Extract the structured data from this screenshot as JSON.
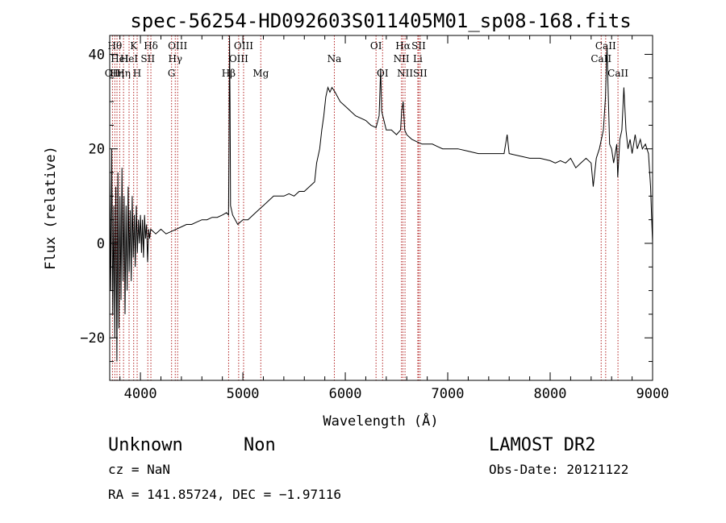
{
  "chart_data": {
    "type": "line",
    "title": "spec-56254-HD092603S011405M01_sp08-168.fits",
    "xlabel": "Wavelength (Å)",
    "ylabel": "Flux (relative)",
    "xlim": [
      3700,
      9000
    ],
    "ylim": [
      -29,
      44
    ],
    "x_ticks": [
      4000,
      5000,
      6000,
      7000,
      8000,
      9000
    ],
    "x_tick_labels": [
      "4000",
      "5000",
      "6000",
      "7000",
      "8000",
      "9000"
    ],
    "y_ticks": [
      -20,
      0,
      20,
      40
    ],
    "y_tick_labels": [
      "−20",
      "0",
      "20",
      "40"
    ],
    "x_minor_step": 200,
    "y_minor_step": 5,
    "grid": false,
    "series": [
      {
        "color": "#000000",
        "points": [
          [
            3700,
            16
          ],
          [
            3710,
            -10
          ],
          [
            3720,
            20
          ],
          [
            3730,
            -15
          ],
          [
            3740,
            8
          ],
          [
            3750,
            -20
          ],
          [
            3760,
            12
          ],
          [
            3770,
            -25
          ],
          [
            3780,
            15
          ],
          [
            3790,
            -18
          ],
          [
            3800,
            10
          ],
          [
            3810,
            -12
          ],
          [
            3820,
            16
          ],
          [
            3830,
            -8
          ],
          [
            3840,
            10
          ],
          [
            3850,
            -15
          ],
          [
            3860,
            8
          ],
          [
            3870,
            -10
          ],
          [
            3880,
            12
          ],
          [
            3890,
            -6
          ],
          [
            3900,
            7
          ],
          [
            3910,
            -8
          ],
          [
            3920,
            10
          ],
          [
            3930,
            -3
          ],
          [
            3940,
            6
          ],
          [
            3950,
            -5
          ],
          [
            3960,
            8
          ],
          [
            3970,
            -2
          ],
          [
            3980,
            5
          ],
          [
            3990,
            0
          ],
          [
            4000,
            6
          ],
          [
            4010,
            -2
          ],
          [
            4020,
            5
          ],
          [
            4030,
            -3
          ],
          [
            4040,
            6
          ],
          [
            4050,
            1
          ],
          [
            4060,
            4
          ],
          [
            4070,
            -4
          ],
          [
            4080,
            3
          ],
          [
            4090,
            1
          ],
          [
            4100,
            3
          ],
          [
            4150,
            2
          ],
          [
            4200,
            3
          ],
          [
            4250,
            2
          ],
          [
            4300,
            2.5
          ],
          [
            4350,
            3
          ],
          [
            4400,
            3.5
          ],
          [
            4450,
            4
          ],
          [
            4500,
            4
          ],
          [
            4550,
            4.5
          ],
          [
            4600,
            5
          ],
          [
            4650,
            5
          ],
          [
            4700,
            5.5
          ],
          [
            4750,
            5.5
          ],
          [
            4800,
            6
          ],
          [
            4840,
            6.5
          ],
          [
            4860,
            6
          ],
          [
            4865,
            20
          ],
          [
            4870,
            45
          ],
          [
            4875,
            30
          ],
          [
            4880,
            8
          ],
          [
            4900,
            6
          ],
          [
            4950,
            4
          ],
          [
            5000,
            5
          ],
          [
            5050,
            5
          ],
          [
            5100,
            6
          ],
          [
            5150,
            7
          ],
          [
            5200,
            8
          ],
          [
            5250,
            9
          ],
          [
            5300,
            10
          ],
          [
            5350,
            10
          ],
          [
            5400,
            10
          ],
          [
            5450,
            10.5
          ],
          [
            5500,
            10
          ],
          [
            5550,
            11
          ],
          [
            5600,
            11
          ],
          [
            5650,
            12
          ],
          [
            5700,
            13
          ],
          [
            5720,
            17
          ],
          [
            5750,
            20
          ],
          [
            5770,
            24
          ],
          [
            5790,
            27
          ],
          [
            5810,
            31
          ],
          [
            5830,
            33
          ],
          [
            5850,
            32
          ],
          [
            5870,
            33
          ],
          [
            5900,
            32
          ],
          [
            5950,
            30
          ],
          [
            6000,
            29
          ],
          [
            6050,
            28
          ],
          [
            6100,
            27
          ],
          [
            6150,
            26.5
          ],
          [
            6200,
            26
          ],
          [
            6250,
            25
          ],
          [
            6300,
            24.5
          ],
          [
            6330,
            27
          ],
          [
            6345,
            37
          ],
          [
            6355,
            28
          ],
          [
            6400,
            24
          ],
          [
            6450,
            24
          ],
          [
            6500,
            23
          ],
          [
            6540,
            24
          ],
          [
            6550,
            28
          ],
          [
            6565,
            30
          ],
          [
            6580,
            24
          ],
          [
            6600,
            23
          ],
          [
            6650,
            22
          ],
          [
            6700,
            21.5
          ],
          [
            6750,
            21
          ],
          [
            6800,
            21
          ],
          [
            6850,
            21
          ],
          [
            6900,
            20.5
          ],
          [
            6950,
            20
          ],
          [
            7000,
            20
          ],
          [
            7100,
            20
          ],
          [
            7200,
            19.5
          ],
          [
            7300,
            19
          ],
          [
            7400,
            19
          ],
          [
            7500,
            19
          ],
          [
            7550,
            19
          ],
          [
            7580,
            23
          ],
          [
            7600,
            19
          ],
          [
            7700,
            18.5
          ],
          [
            7800,
            18
          ],
          [
            7900,
            18
          ],
          [
            8000,
            17.5
          ],
          [
            8050,
            17
          ],
          [
            8100,
            17.5
          ],
          [
            8150,
            17
          ],
          [
            8200,
            18
          ],
          [
            8250,
            16
          ],
          [
            8300,
            17
          ],
          [
            8350,
            18
          ],
          [
            8400,
            17
          ],
          [
            8420,
            12
          ],
          [
            8450,
            18
          ],
          [
            8480,
            20
          ],
          [
            8500,
            22
          ],
          [
            8520,
            24
          ],
          [
            8540,
            31
          ],
          [
            8555,
            42
          ],
          [
            8565,
            33
          ],
          [
            8580,
            21
          ],
          [
            8600,
            20
          ],
          [
            8620,
            17
          ],
          [
            8650,
            21
          ],
          [
            8660,
            14
          ],
          [
            8680,
            22
          ],
          [
            8700,
            24
          ],
          [
            8720,
            33
          ],
          [
            8740,
            24
          ],
          [
            8760,
            20
          ],
          [
            8780,
            22
          ],
          [
            8800,
            19
          ],
          [
            8830,
            23
          ],
          [
            8850,
            20
          ],
          [
            8880,
            22
          ],
          [
            8900,
            20
          ],
          [
            8930,
            21
          ],
          [
            8960,
            19
          ],
          [
            8980,
            12
          ],
          [
            8990,
            6
          ],
          [
            9000,
            0
          ]
        ]
      }
    ],
    "spectral_lines": [
      {
        "wavelength": 3727,
        "label": "OII",
        "row": 2
      },
      {
        "wavelength": 3750,
        "label": "Hθ",
        "row": 0
      },
      {
        "wavelength": 3771,
        "label": "Hη",
        "row": 2
      },
      {
        "wavelength": 3798,
        "label": "HeI",
        "row": 1
      },
      {
        "wavelength": 3835,
        "label": "Hη",
        "row": 2
      },
      {
        "wavelength": 3889,
        "label": "HeI",
        "row": 1
      },
      {
        "wavelength": 3934,
        "label": "K",
        "row": 0
      },
      {
        "wavelength": 3968,
        "label": "H",
        "row": 2
      },
      {
        "wavelength": 4072,
        "label": "SII",
        "row": 1
      },
      {
        "wavelength": 4102,
        "label": "Hδ",
        "row": 0
      },
      {
        "wavelength": 4304,
        "label": "G",
        "row": 2
      },
      {
        "wavelength": 4340,
        "label": "Hγ",
        "row": 1
      },
      {
        "wavelength": 4363,
        "label": "OIII",
        "row": 0
      },
      {
        "wavelength": 4861,
        "label": "Hβ",
        "row": 2
      },
      {
        "wavelength": 4959,
        "label": "OIII",
        "row": 1
      },
      {
        "wavelength": 5007,
        "label": "OIII",
        "row": 0
      },
      {
        "wavelength": 5175,
        "label": "Mg",
        "row": 2
      },
      {
        "wavelength": 5893,
        "label": "Na",
        "row": 1
      },
      {
        "wavelength": 6300,
        "label": "OI",
        "row": 0
      },
      {
        "wavelength": 6364,
        "label": "OI",
        "row": 2
      },
      {
        "wavelength": 6548,
        "label": "NII",
        "row": 1
      },
      {
        "wavelength": 6563,
        "label": "Hα",
        "row": 0
      },
      {
        "wavelength": 6583,
        "label": "NII",
        "row": 2
      },
      {
        "wavelength": 6708,
        "label": "Li",
        "row": 1
      },
      {
        "wavelength": 6716,
        "label": "SII",
        "row": 0
      },
      {
        "wavelength": 6731,
        "label": "SII",
        "row": 2
      },
      {
        "wavelength": 8498,
        "label": "CaII",
        "row": 1
      },
      {
        "wavelength": 8542,
        "label": "CaII",
        "row": 0
      },
      {
        "wavelength": 8662,
        "label": "CaII",
        "row": 2
      }
    ],
    "line_color": "#b22222"
  },
  "info": {
    "object_class": "Unknown",
    "object_subclass": "Non",
    "cz": "cz = NaN",
    "coords": "RA = 141.85724, DEC =  −1.97116",
    "survey": "LAMOST DR2",
    "obs_date": "Obs-Date: 20121122"
  }
}
